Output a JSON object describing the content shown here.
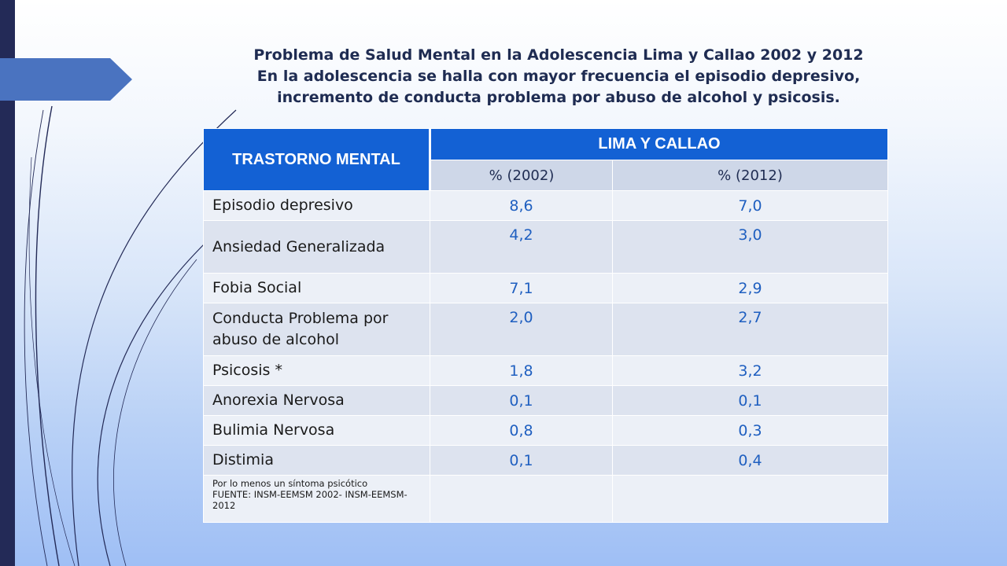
{
  "title": {
    "line1": "Problema de Salud Mental en la Adolescencia Lima y Callao 2002 y 2012",
    "line2": "En la adolescencia se halla con mayor frecuencia el episodio depresivo,",
    "line3": "incremento de conducta problema por abuso de alcohol y psicosis."
  },
  "table": {
    "header_main": "TRASTORNO MENTAL",
    "header_group": "LIMA Y CALLAO",
    "subheaders": [
      "% (2002)",
      "%  (2012)"
    ],
    "rows": [
      {
        "name": "Episodio depresivo",
        "v2002": "8,6",
        "v2012": "7,0"
      },
      {
        "name": "Ansiedad Generalizada",
        "v2002": "4,2",
        "v2012": "3,0"
      },
      {
        "name": "Fobia Social",
        "v2002": "7,1",
        "v2012": "2,9"
      },
      {
        "name": "Conducta Problema por abuso de alcohol",
        "v2002": "2,0",
        "v2012": "2,7"
      },
      {
        "name": "Psicosis *",
        "v2002": "1,8",
        "v2012": "3,2"
      },
      {
        "name": "Anorexia Nervosa",
        "v2002": "0,1",
        "v2012": "0,1"
      },
      {
        "name": "Bulimia Nervosa",
        "v2002": "0,8",
        "v2012": "0,3"
      },
      {
        "name": "Distimia",
        "v2002": "0,1",
        "v2012": "0,4"
      }
    ],
    "note_line1": "Por lo menos un síntoma psicótico",
    "note_line2": "FUENTE: INSM-EEMSM 2002-  INSM-EEMSM-2012"
  },
  "colors": {
    "header_blue": "#1361d4",
    "left_bar": "#232a57",
    "value_blue": "#1f5fc0"
  }
}
